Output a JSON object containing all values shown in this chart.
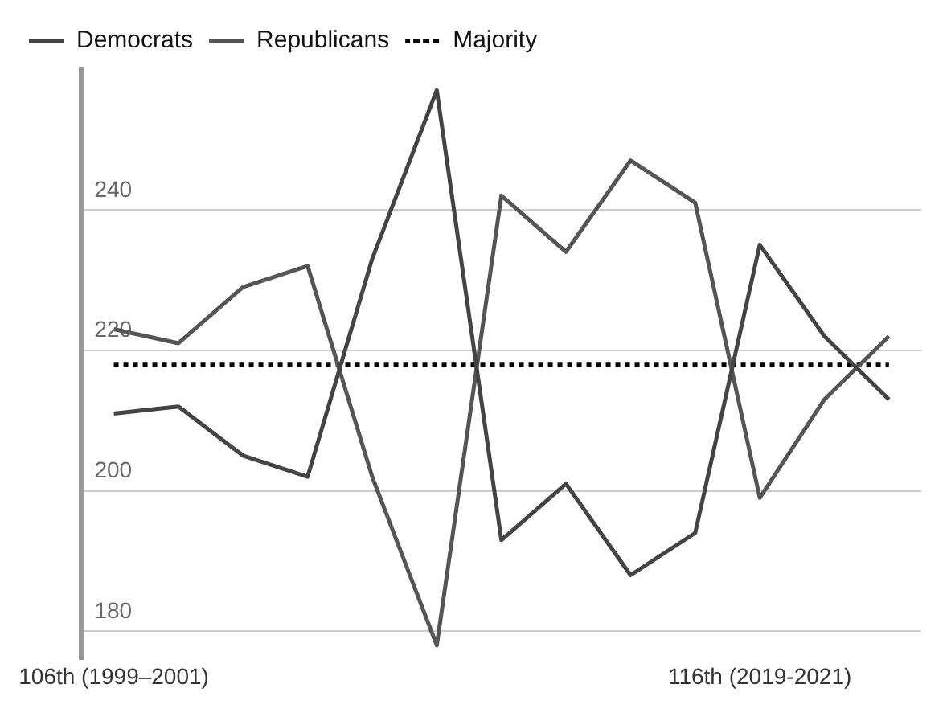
{
  "chart_data": {
    "type": "line",
    "categories": [
      "106th (1999–2001)",
      null,
      null,
      null,
      null,
      null,
      null,
      null,
      null,
      null,
      "116th (2019-2021)",
      null,
      null
    ],
    "series": [
      {
        "name": "Democrats",
        "color": "#444444",
        "values": [
          211,
          212,
          205,
          202,
          233,
          257,
          193,
          201,
          188,
          194,
          235,
          222,
          213
        ]
      },
      {
        "name": "Republicans",
        "color": "#555555",
        "values": [
          223,
          221,
          229,
          232,
          202,
          178,
          242,
          234,
          247,
          241,
          199,
          213,
          222
        ]
      },
      {
        "name": "Majority",
        "color": "#000000",
        "line_style": "dotted",
        "values": [
          218,
          218,
          218,
          218,
          218,
          218,
          218,
          218,
          218,
          218,
          218,
          218,
          218
        ]
      }
    ],
    "ylim": [
      176,
      260
    ],
    "yticks": [
      180,
      200,
      220,
      240
    ],
    "grid": "y",
    "legend": "top left",
    "marker": "none",
    "line_style": "solid"
  }
}
